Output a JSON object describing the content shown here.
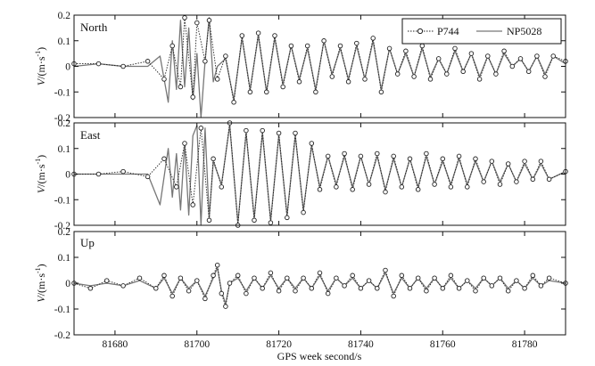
{
  "x_axis": {
    "label": "GPS week second/s"
  },
  "legend": {
    "placement": "top-right of first panel",
    "entries": [
      {
        "name": "P744",
        "style": "dotted line with circle markers",
        "color": "#222222"
      },
      {
        "name": "NP5028",
        "style": "solid line",
        "color": "#777777"
      }
    ]
  },
  "chart_data": [
    {
      "type": "line",
      "panel_label": "North",
      "ylabel": "V/(m·s⁻¹)",
      "ylabel_main": "V",
      "ylabel_unit": "/(m·s",
      "ylabel_exp": "-1",
      "ylabel_close": ")",
      "xlim": [
        81670,
        81790
      ],
      "ylim": [
        -0.2,
        0.2
      ],
      "yticks": [
        "0.2",
        "0.1",
        "0",
        "-0.1",
        "-0.2"
      ],
      "ytick_values": [
        0.2,
        0.1,
        0,
        -0.1,
        -0.2
      ],
      "xticks": [],
      "series": [
        {
          "name": "P744",
          "x": [
            81670,
            81676,
            81682,
            81688,
            81692,
            81694,
            81696,
            81697,
            81699,
            81700,
            81702,
            81703,
            81705,
            81707,
            81709,
            81711,
            81713,
            81715,
            81717,
            81719,
            81721,
            81723,
            81725,
            81727,
            81729,
            81731,
            81733,
            81735,
            81737,
            81739,
            81741,
            81743,
            81745,
            81747,
            81749,
            81751,
            81753,
            81755,
            81757,
            81759,
            81761,
            81763,
            81765,
            81767,
            81769,
            81771,
            81773,
            81775,
            81777,
            81779,
            81781,
            81783,
            81785,
            81787,
            81790
          ],
          "y": [
            0.01,
            0.01,
            0.0,
            0.02,
            -0.05,
            0.08,
            -0.08,
            0.19,
            -0.12,
            0.17,
            0.02,
            0.18,
            -0.05,
            0.04,
            -0.14,
            0.12,
            -0.1,
            0.13,
            -0.1,
            0.12,
            -0.08,
            0.08,
            -0.06,
            0.08,
            -0.1,
            0.1,
            -0.04,
            0.08,
            -0.06,
            0.09,
            -0.05,
            0.11,
            -0.1,
            0.07,
            -0.03,
            0.06,
            -0.04,
            0.08,
            -0.05,
            0.03,
            -0.03,
            0.07,
            -0.02,
            0.05,
            -0.05,
            0.04,
            -0.03,
            0.06,
            0.0,
            0.03,
            -0.02,
            0.04,
            -0.04,
            0.04,
            0.02
          ]
        },
        {
          "name": "NP5028",
          "x": [
            81670,
            81676,
            81682,
            81688,
            81691,
            81693,
            81694,
            81695,
            81696,
            81697,
            81698,
            81699,
            81700,
            81701,
            81702,
            81703,
            81704,
            81705,
            81707,
            81709,
            81711,
            81713,
            81715,
            81717,
            81719,
            81721,
            81723,
            81725,
            81727,
            81729,
            81731,
            81733,
            81735,
            81737,
            81739,
            81741,
            81743,
            81745,
            81747,
            81749,
            81751,
            81753,
            81755,
            81757,
            81759,
            81761,
            81763,
            81765,
            81767,
            81769,
            81771,
            81773,
            81775,
            81777,
            81779,
            81781,
            81783,
            81785,
            81787,
            81790
          ],
          "y": [
            0.0,
            0.01,
            0.0,
            0.0,
            0.04,
            -0.14,
            0.1,
            -0.09,
            0.18,
            -0.08,
            0.15,
            -0.13,
            0.05,
            -0.2,
            0.02,
            0.19,
            -0.06,
            0.0,
            0.03,
            -0.13,
            0.11,
            -0.09,
            0.12,
            -0.1,
            0.11,
            -0.07,
            0.08,
            -0.05,
            0.07,
            -0.09,
            0.1,
            -0.03,
            0.07,
            -0.05,
            0.08,
            -0.05,
            0.1,
            -0.09,
            0.07,
            -0.03,
            0.05,
            -0.04,
            0.07,
            -0.04,
            0.03,
            -0.03,
            0.06,
            -0.02,
            0.05,
            -0.04,
            0.04,
            -0.03,
            0.05,
            0.0,
            0.03,
            -0.02,
            0.04,
            -0.03,
            0.04,
            0.01
          ]
        }
      ]
    },
    {
      "type": "line",
      "panel_label": "East",
      "ylabel": "V/(m·s⁻¹)",
      "ylabel_main": "V",
      "ylabel_unit": "/(m·s",
      "ylabel_exp": "-1",
      "ylabel_close": ")",
      "xlim": [
        81670,
        81790
      ],
      "ylim": [
        -0.2,
        0.2
      ],
      "yticks": [
        "0.2",
        "0.1",
        "0",
        "-0.1",
        "-0.2"
      ],
      "ytick_values": [
        0.2,
        0.1,
        0,
        -0.1,
        -0.2
      ],
      "xticks": [],
      "series": [
        {
          "name": "P744",
          "x": [
            81670,
            81676,
            81682,
            81688,
            81692,
            81695,
            81697,
            81699,
            81701,
            81703,
            81704,
            81706,
            81708,
            81710,
            81712,
            81714,
            81716,
            81718,
            81720,
            81722,
            81724,
            81726,
            81728,
            81730,
            81732,
            81734,
            81736,
            81738,
            81740,
            81742,
            81744,
            81746,
            81748,
            81750,
            81752,
            81754,
            81756,
            81758,
            81760,
            81762,
            81764,
            81766,
            81768,
            81770,
            81772,
            81774,
            81776,
            81778,
            81780,
            81782,
            81784,
            81786,
            81790
          ],
          "y": [
            0.0,
            0.0,
            0.01,
            -0.01,
            0.06,
            -0.05,
            0.12,
            -0.12,
            0.18,
            -0.18,
            0.06,
            -0.05,
            0.2,
            -0.2,
            0.17,
            -0.18,
            0.17,
            -0.19,
            0.16,
            -0.17,
            0.16,
            -0.15,
            0.12,
            -0.06,
            0.07,
            -0.05,
            0.08,
            -0.06,
            0.07,
            -0.04,
            0.08,
            -0.07,
            0.07,
            -0.05,
            0.06,
            -0.06,
            0.08,
            -0.04,
            0.06,
            -0.05,
            0.07,
            -0.05,
            0.06,
            -0.03,
            0.05,
            -0.04,
            0.04,
            -0.03,
            0.05,
            -0.02,
            0.05,
            -0.02,
            0.01
          ]
        },
        {
          "name": "NP5028",
          "x": [
            81670,
            81676,
            81682,
            81688,
            81691,
            81693,
            81694,
            81695,
            81696,
            81697,
            81698,
            81699,
            81700,
            81701,
            81702,
            81703,
            81704,
            81706,
            81708,
            81710,
            81712,
            81714,
            81716,
            81718,
            81720,
            81722,
            81724,
            81726,
            81728,
            81730,
            81732,
            81734,
            81736,
            81738,
            81740,
            81742,
            81744,
            81746,
            81748,
            81750,
            81752,
            81754,
            81756,
            81758,
            81760,
            81762,
            81764,
            81766,
            81768,
            81770,
            81772,
            81774,
            81776,
            81778,
            81780,
            81782,
            81784,
            81786,
            81790
          ],
          "y": [
            0.0,
            0.0,
            0.0,
            0.0,
            -0.12,
            0.1,
            -0.09,
            0.08,
            -0.14,
            0.12,
            -0.16,
            0.15,
            0.19,
            -0.2,
            0.18,
            -0.17,
            0.05,
            -0.04,
            0.19,
            -0.19,
            0.16,
            -0.17,
            0.16,
            -0.18,
            0.15,
            -0.16,
            0.15,
            -0.14,
            0.11,
            -0.05,
            0.07,
            -0.04,
            0.07,
            -0.05,
            0.07,
            -0.04,
            0.07,
            -0.06,
            0.06,
            -0.05,
            0.06,
            -0.05,
            0.07,
            -0.04,
            0.05,
            -0.04,
            0.06,
            -0.04,
            0.05,
            -0.03,
            0.05,
            -0.03,
            0.04,
            -0.03,
            0.04,
            -0.02,
            0.04,
            -0.02,
            0.01
          ]
        }
      ]
    },
    {
      "type": "line",
      "panel_label": "Up",
      "ylabel": "V/(m·s⁻¹)",
      "ylabel_main": "V",
      "ylabel_unit": "/(m·s",
      "ylabel_exp": "-1",
      "ylabel_close": ")",
      "xlim": [
        81670,
        81790
      ],
      "ylim": [
        -0.2,
        0.2
      ],
      "yticks": [
        "0.2",
        "0.1",
        "0",
        "-0.1",
        "-0.2"
      ],
      "ytick_values": [
        0.2,
        0.1,
        0,
        -0.1,
        -0.2
      ],
      "xticks": [
        "81680",
        "81700",
        "81720",
        "81740",
        "81760",
        "81780"
      ],
      "xtick_values": [
        81680,
        81700,
        81720,
        81740,
        81760,
        81780
      ],
      "series": [
        {
          "name": "P744",
          "x": [
            81670,
            81674,
            81678,
            81682,
            81686,
            81690,
            81692,
            81694,
            81696,
            81698,
            81700,
            81702,
            81704,
            81705,
            81706,
            81707,
            81708,
            81710,
            81712,
            81714,
            81716,
            81718,
            81720,
            81722,
            81724,
            81726,
            81728,
            81730,
            81732,
            81734,
            81736,
            81738,
            81740,
            81742,
            81744,
            81746,
            81748,
            81750,
            81752,
            81754,
            81756,
            81758,
            81760,
            81762,
            81764,
            81766,
            81768,
            81770,
            81772,
            81774,
            81776,
            81778,
            81780,
            81782,
            81784,
            81786,
            81790
          ],
          "y": [
            0.0,
            -0.02,
            0.01,
            -0.01,
            0.02,
            -0.02,
            0.03,
            -0.05,
            0.02,
            -0.03,
            0.01,
            -0.06,
            0.03,
            0.07,
            -0.04,
            -0.09,
            0.0,
            0.03,
            -0.04,
            0.02,
            -0.02,
            0.04,
            -0.03,
            0.02,
            -0.03,
            0.02,
            -0.02,
            0.04,
            -0.04,
            0.02,
            -0.01,
            0.03,
            -0.02,
            0.01,
            -0.02,
            0.05,
            -0.05,
            0.03,
            -0.02,
            0.02,
            -0.03,
            0.02,
            -0.02,
            0.03,
            -0.02,
            0.01,
            -0.03,
            0.02,
            -0.01,
            0.02,
            -0.03,
            0.01,
            -0.02,
            0.03,
            -0.01,
            0.02,
            0.0
          ]
        },
        {
          "name": "NP5028",
          "x": [
            81670,
            81674,
            81678,
            81682,
            81686,
            81690,
            81692,
            81694,
            81696,
            81698,
            81700,
            81702,
            81704,
            81705,
            81706,
            81707,
            81708,
            81710,
            81712,
            81714,
            81716,
            81718,
            81720,
            81722,
            81724,
            81726,
            81728,
            81730,
            81732,
            81734,
            81736,
            81738,
            81740,
            81742,
            81744,
            81746,
            81748,
            81750,
            81752,
            81754,
            81756,
            81758,
            81760,
            81762,
            81764,
            81766,
            81768,
            81770,
            81772,
            81774,
            81776,
            81778,
            81780,
            81782,
            81784,
            81786,
            81790
          ],
          "y": [
            0.0,
            -0.01,
            0.0,
            -0.01,
            0.01,
            -0.02,
            0.02,
            -0.04,
            0.02,
            -0.02,
            0.01,
            -0.05,
            0.02,
            0.06,
            -0.03,
            -0.08,
            0.0,
            0.02,
            -0.03,
            0.02,
            -0.02,
            0.03,
            -0.02,
            0.02,
            -0.02,
            0.02,
            -0.02,
            0.03,
            -0.03,
            0.02,
            -0.01,
            0.02,
            -0.02,
            0.01,
            -0.02,
            0.04,
            -0.04,
            0.02,
            -0.02,
            0.02,
            -0.02,
            0.02,
            -0.02,
            0.02,
            -0.02,
            0.01,
            -0.02,
            0.02,
            -0.01,
            0.02,
            -0.02,
            0.01,
            -0.02,
            0.02,
            -0.01,
            0.01,
            0.0
          ]
        }
      ]
    }
  ]
}
